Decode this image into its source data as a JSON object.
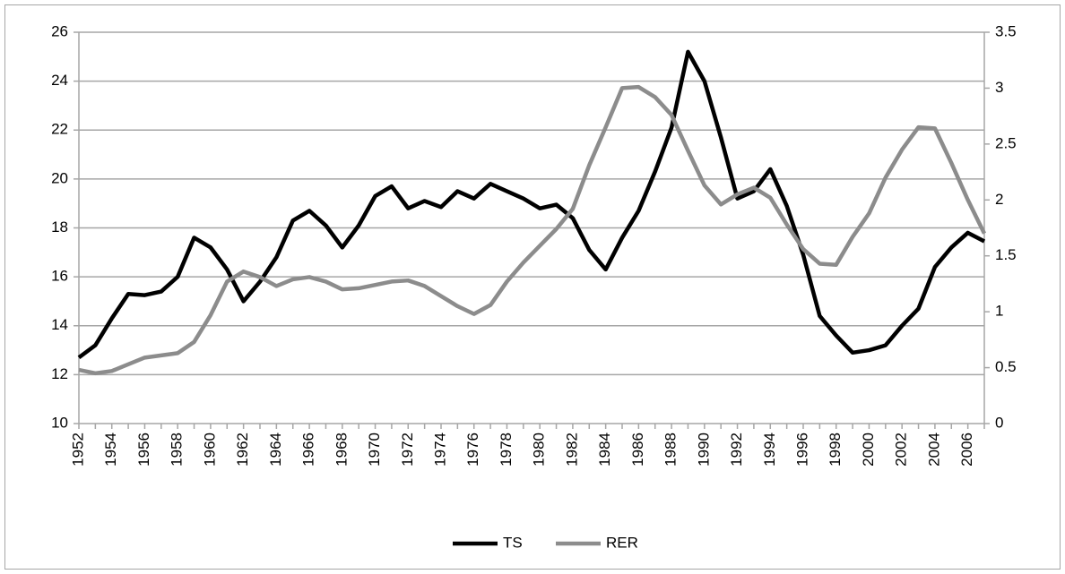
{
  "chart_data": {
    "type": "line",
    "categories": [
      "1952",
      null,
      "1954",
      null,
      "1956",
      null,
      "1958",
      null,
      "1960",
      null,
      "1962",
      null,
      "1964",
      null,
      "1966",
      null,
      "1968",
      null,
      "1970",
      null,
      "1972",
      null,
      "1974",
      null,
      "1976",
      null,
      "1978",
      null,
      "1980",
      null,
      "1982",
      null,
      "1984",
      null,
      "1986",
      null,
      "1988",
      null,
      "1990",
      null,
      "1992",
      null,
      "1994",
      null,
      "1996",
      null,
      "1998",
      null,
      "2000",
      null,
      "2002",
      null,
      "2004",
      null,
      "2006",
      null
    ],
    "series": [
      {
        "name": "TS",
        "color": "#000000",
        "values": [
          12.7,
          13.2,
          14.3,
          15.3,
          15.25,
          15.4,
          16.0,
          17.6,
          17.2,
          16.3,
          15.0,
          15.8,
          16.8,
          18.3,
          18.7,
          18.1,
          17.2,
          18.1,
          19.3,
          19.7,
          18.8,
          19.1,
          18.85,
          19.5,
          19.2,
          19.8,
          19.5,
          19.2,
          18.8,
          18.95,
          18.4,
          17.1,
          16.3,
          17.6,
          18.7,
          20.3,
          22.1,
          25.2,
          24.0,
          21.7,
          19.2,
          19.5,
          20.4,
          18.9,
          16.9,
          14.4,
          13.6,
          12.9,
          13.0,
          13.2,
          14.0,
          14.7,
          16.4,
          17.2,
          17.8,
          17.45
        ]
      },
      {
        "name": "RER",
        "color": "#8c8c8c",
        "axis": "y2",
        "values": [
          0.48,
          0.45,
          0.47,
          0.53,
          0.59,
          0.61,
          0.63,
          0.73,
          0.97,
          1.27,
          1.36,
          1.31,
          1.23,
          1.29,
          1.31,
          1.27,
          1.2,
          1.21,
          1.24,
          1.27,
          1.28,
          1.23,
          1.14,
          1.05,
          0.98,
          1.06,
          1.27,
          1.44,
          1.59,
          1.74,
          1.92,
          2.31,
          2.65,
          3.0,
          3.01,
          2.92,
          2.76,
          2.44,
          2.13,
          1.96,
          2.05,
          2.11,
          2.02,
          1.78,
          1.56,
          1.43,
          1.42,
          1.67,
          1.88,
          2.2,
          2.45,
          2.65,
          2.64,
          2.33,
          2.0,
          1.7
        ]
      }
    ],
    "ylim": [
      10,
      26
    ],
    "yticks": [
      10,
      12,
      14,
      16,
      18,
      20,
      22,
      24,
      26
    ],
    "y2lim": [
      0,
      3.5
    ],
    "y2ticks": [
      0,
      0.5,
      1,
      1.5,
      2,
      2.5,
      3,
      3.5
    ],
    "grid": true,
    "legend": "bottom"
  }
}
